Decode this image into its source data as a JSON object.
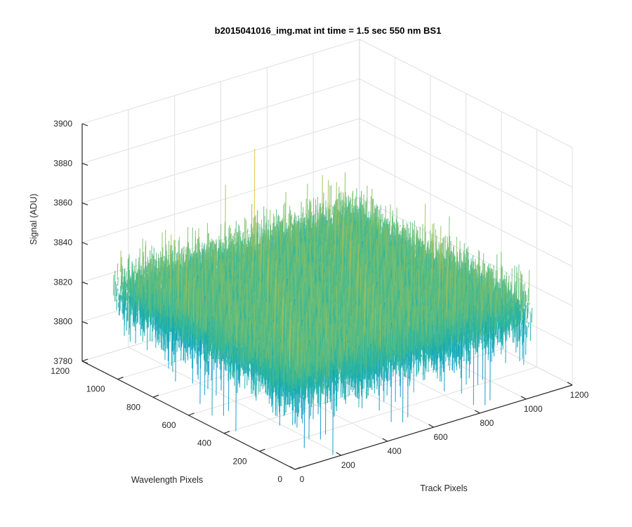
{
  "chart_data": {
    "type": "surface",
    "title": "b2015041016_img.mat int time = 1.5 sec  550 nm BS1",
    "xlabel": "Track Pixels",
    "ylabel": "Wavelength Pixels",
    "zlabel": "Signal (ADU)",
    "xlim": [
      0,
      1200
    ],
    "ylim": [
      0,
      1200
    ],
    "zlim": [
      3780,
      3900
    ],
    "x_ticks": [
      "0",
      "200",
      "400",
      "600",
      "800",
      "1000",
      "1200"
    ],
    "y_ticks": [
      "0",
      "200",
      "400",
      "600",
      "800",
      "1000",
      "1200"
    ],
    "z_ticks": [
      "3780",
      "3800",
      "3820",
      "3840",
      "3860",
      "3880",
      "3900"
    ],
    "x_extent": [
      0,
      1024
    ],
    "y_extent": [
      0,
      1024
    ],
    "z_typical_range": [
      3805,
      3845
    ],
    "z_peak_range": [
      3780,
      3880
    ],
    "z_mean": 3823,
    "grid": true,
    "colormap": "parula"
  }
}
